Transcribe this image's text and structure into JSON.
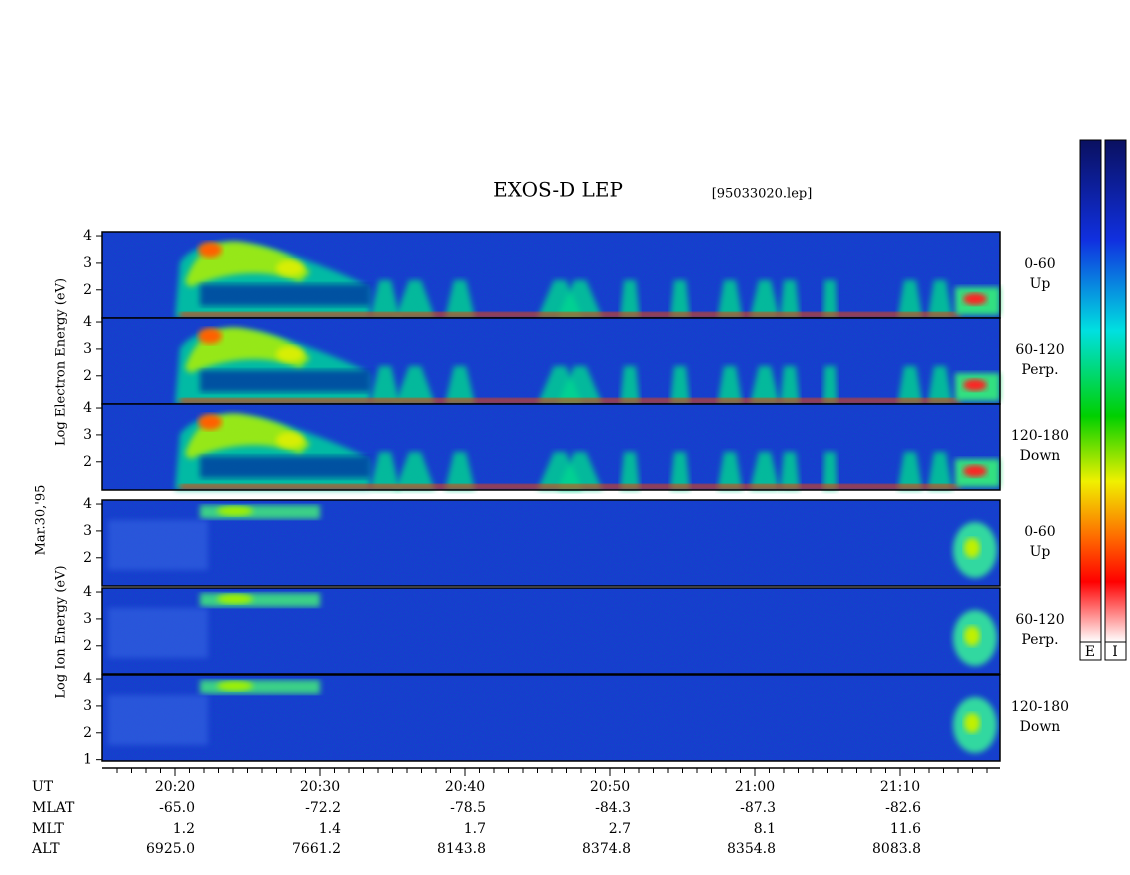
{
  "header": {
    "title": "EXOS-D LEP",
    "file": "[95033020.lep]"
  },
  "date_label": "Mar.30,'95",
  "electron_axis_label": "Log  Electron  Energy (eV)",
  "ion_axis_label": "Log   Ion   Energy (eV)",
  "panels": [
    {
      "species": "electron",
      "pitch": "0-60",
      "direction": "Up",
      "ylim": [
        0.95,
        4.15
      ],
      "yticks": [
        2,
        3,
        4
      ]
    },
    {
      "species": "electron",
      "pitch": "60-120",
      "direction": "Perp.",
      "ylim": [
        0.95,
        4.15
      ],
      "yticks": [
        2,
        3,
        4
      ]
    },
    {
      "species": "electron",
      "pitch": "120-180",
      "direction": "Down",
      "ylim": [
        0.95,
        4.15
      ],
      "yticks": [
        2,
        3,
        4
      ]
    },
    {
      "species": "ion",
      "pitch": "0-60",
      "direction": "Up",
      "ylim": [
        0.95,
        4.15
      ],
      "yticks": [
        2,
        3,
        4
      ]
    },
    {
      "species": "ion",
      "pitch": "60-120",
      "direction": "Perp.",
      "ylim": [
        0.95,
        4.15
      ],
      "yticks": [
        2,
        3,
        4
      ]
    },
    {
      "species": "ion",
      "pitch": "120-180",
      "direction": "Down",
      "ylim": [
        0.95,
        4.15
      ],
      "yticks": [
        1,
        2,
        3,
        4
      ]
    }
  ],
  "orbit_table": {
    "row_names": [
      "UT",
      "MLAT",
      "MLT",
      "ALT"
    ],
    "columns": [
      [
        "20:20",
        "-65.0",
        "1.2",
        "6925.0"
      ],
      [
        "20:30",
        "-72.2",
        "1.4",
        "7661.2"
      ],
      [
        "20:40",
        "-78.5",
        "1.7",
        "8143.8"
      ],
      [
        "20:50",
        "-84.3",
        "2.7",
        "8374.8"
      ],
      [
        "21:00",
        "-87.3",
        "8.1",
        "8354.8"
      ],
      [
        "21:10",
        "-82.6",
        "11.6",
        "8083.8"
      ]
    ]
  },
  "colorbar_labels": [
    "E",
    "I"
  ]
}
